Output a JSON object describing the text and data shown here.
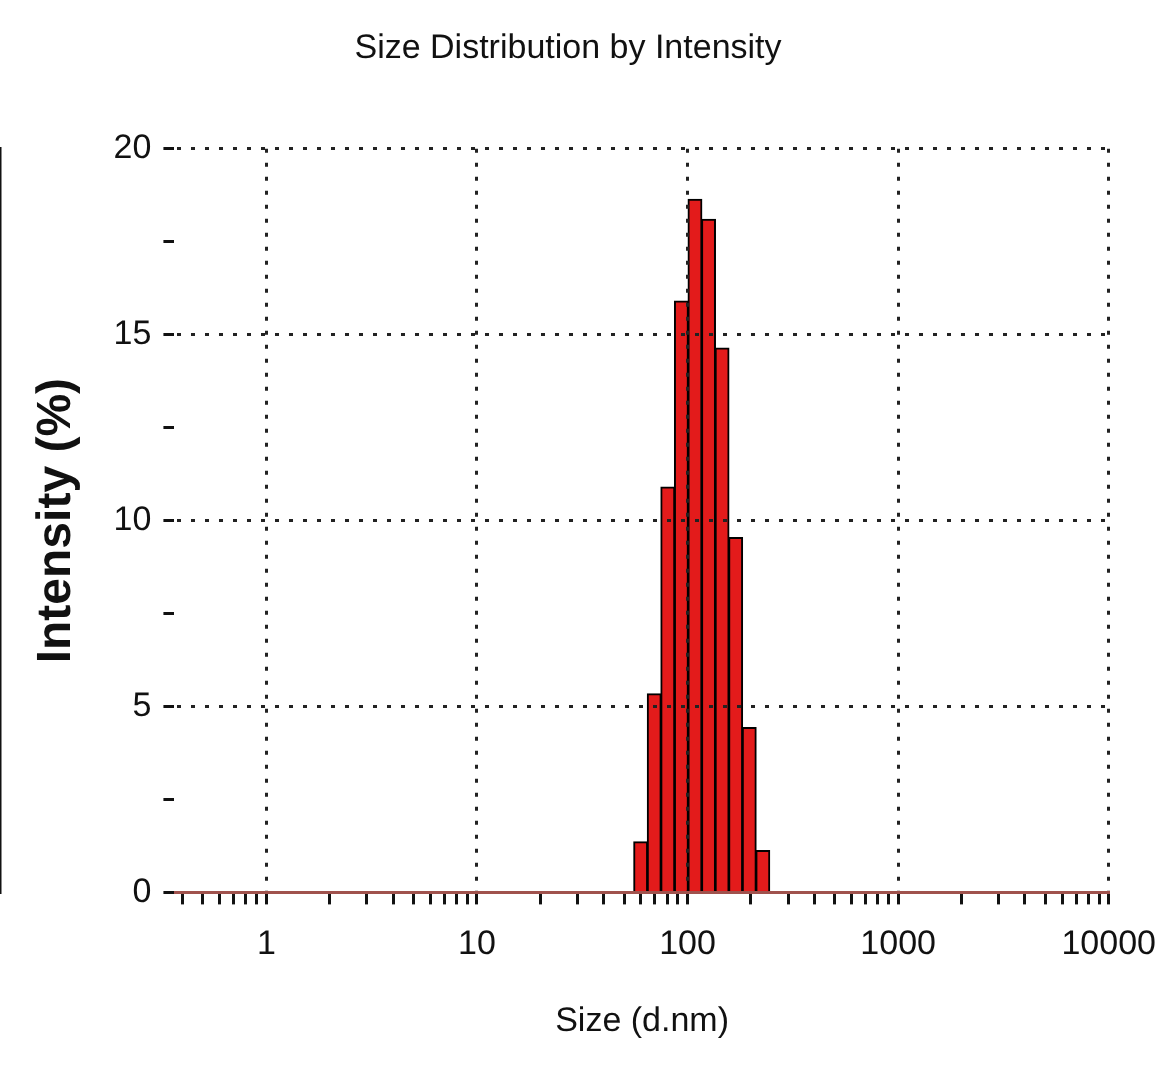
{
  "chart_data": {
    "type": "histogram",
    "title": "Size Distribution by Intensity",
    "xlabel": "Size (d.nm)",
    "ylabel": "Intensity (%)",
    "bins": [
      55.6,
      64.5,
      74.8,
      86.8,
      100.7,
      116.8,
      135.5,
      157.1,
      182.3,
      211.5,
      245.3
    ],
    "values": [
      1.36,
      5.34,
      10.9,
      15.9,
      18.64,
      18.1,
      14.64,
      9.54,
      4.43,
      1.12
    ],
    "color": "#e31b1b",
    "log": "x",
    "grid": true,
    "legend": false,
    "xlim": [
      0.37,
      10000
    ],
    "xticks": [
      {
        "value": 0.4,
        "label": null
      },
      {
        "value": 0.5,
        "label": null
      },
      {
        "value": 0.6,
        "label": null
      },
      {
        "value": 0.7,
        "label": null
      },
      {
        "value": 0.8,
        "label": null
      },
      {
        "value": 0.9,
        "label": null
      },
      1,
      {
        "value": 2,
        "label": null
      },
      {
        "value": 3,
        "label": null
      },
      {
        "value": 4,
        "label": null
      },
      {
        "value": 5,
        "label": null
      },
      {
        "value": 6,
        "label": null
      },
      {
        "value": 7,
        "label": null
      },
      {
        "value": 8,
        "label": null
      },
      {
        "value": 9,
        "label": null
      },
      10,
      {
        "value": 20,
        "label": null
      },
      {
        "value": 30,
        "label": null
      },
      {
        "value": 40,
        "label": null
      },
      {
        "value": 50,
        "label": null
      },
      {
        "value": 60,
        "label": null
      },
      {
        "value": 70,
        "label": null
      },
      {
        "value": 80,
        "label": null
      },
      {
        "value": 90,
        "label": null
      },
      100,
      {
        "value": 200,
        "label": null
      },
      {
        "value": 300,
        "label": null
      },
      {
        "value": 400,
        "label": null
      },
      {
        "value": 500,
        "label": null
      },
      {
        "value": 600,
        "label": null
      },
      {
        "value": 700,
        "label": null
      },
      {
        "value": 800,
        "label": null
      },
      {
        "value": 900,
        "label": null
      },
      1000,
      {
        "value": 2000,
        "label": null
      },
      {
        "value": 3000,
        "label": null
      },
      {
        "value": 4000,
        "label": null
      },
      {
        "value": 5000,
        "label": null
      },
      {
        "value": 6000,
        "label": null
      },
      {
        "value": 7000,
        "label": null
      },
      {
        "value": 8000,
        "label": null
      },
      {
        "value": 9000,
        "label": null
      },
      10000
    ],
    "ylim": [
      0,
      20
    ],
    "yticks": [
      0,
      {
        "value": 2.5,
        "label": null
      },
      5,
      {
        "value": 7.5,
        "label": null
      },
      10,
      {
        "value": 12.5,
        "label": null
      },
      15,
      {
        "value": 17.5,
        "label": null
      },
      20
    ]
  }
}
